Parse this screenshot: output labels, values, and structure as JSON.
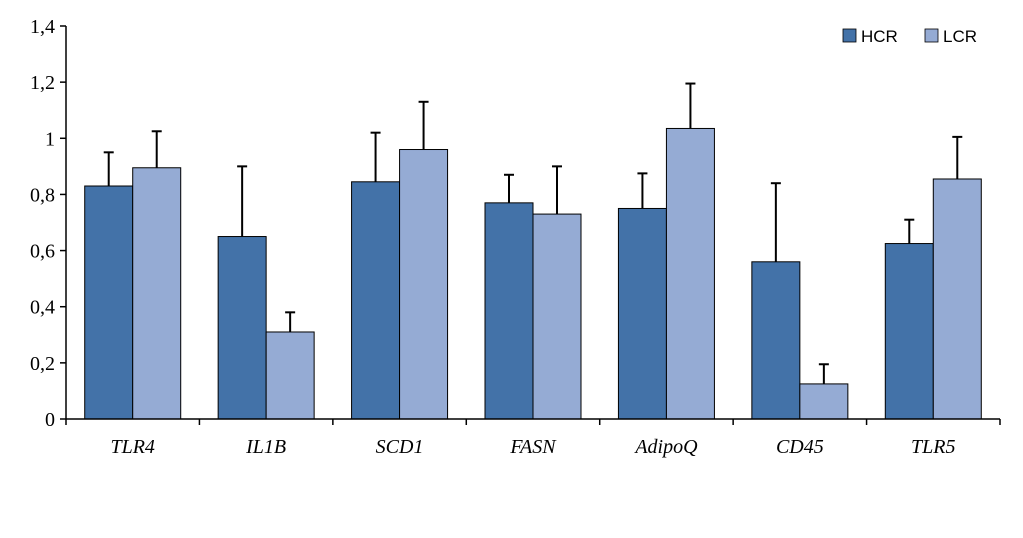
{
  "chart_data": {
    "type": "bar",
    "categories": [
      "TLR4",
      "IL1B",
      "SCD1",
      "FASN",
      "AdipoQ",
      "CD45",
      "TLR5"
    ],
    "series": [
      {
        "name": "HCR",
        "values": [
          0.83,
          0.65,
          0.845,
          0.77,
          0.75,
          0.56,
          0.625
        ],
        "errors": [
          0.12,
          0.25,
          0.175,
          0.1,
          0.125,
          0.28,
          0.085
        ]
      },
      {
        "name": "LCR",
        "values": [
          0.895,
          0.31,
          0.96,
          0.73,
          1.035,
          0.125,
          0.855
        ],
        "errors": [
          0.13,
          0.07,
          0.17,
          0.17,
          0.16,
          0.07,
          0.15
        ]
      }
    ],
    "title": "",
    "xlabel": "",
    "ylabel": "",
    "ylim": [
      0,
      1.4
    ],
    "yticks": [
      "0",
      "0,2",
      "0,4",
      "0,6",
      "0,8",
      "1",
      "1,2",
      "1,4"
    ],
    "grid": false,
    "legend_position": "top-right",
    "colors": {
      "HCR": "#4372a8",
      "LCR": "#95abd4",
      "axis": "#000000",
      "error_bar": "#000000"
    }
  }
}
